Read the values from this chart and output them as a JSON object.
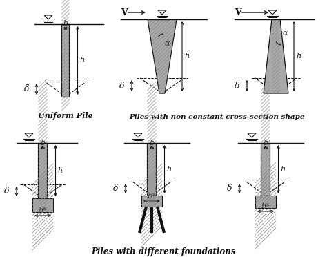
{
  "title_top": "Piles with non constant cross-section shape",
  "title_bottom": "Piles with different foundations",
  "label_uniform": "Uniform Pile",
  "pile_gray": "#aaaaaa",
  "pile_light": "#cccccc",
  "line_color": "#111111"
}
